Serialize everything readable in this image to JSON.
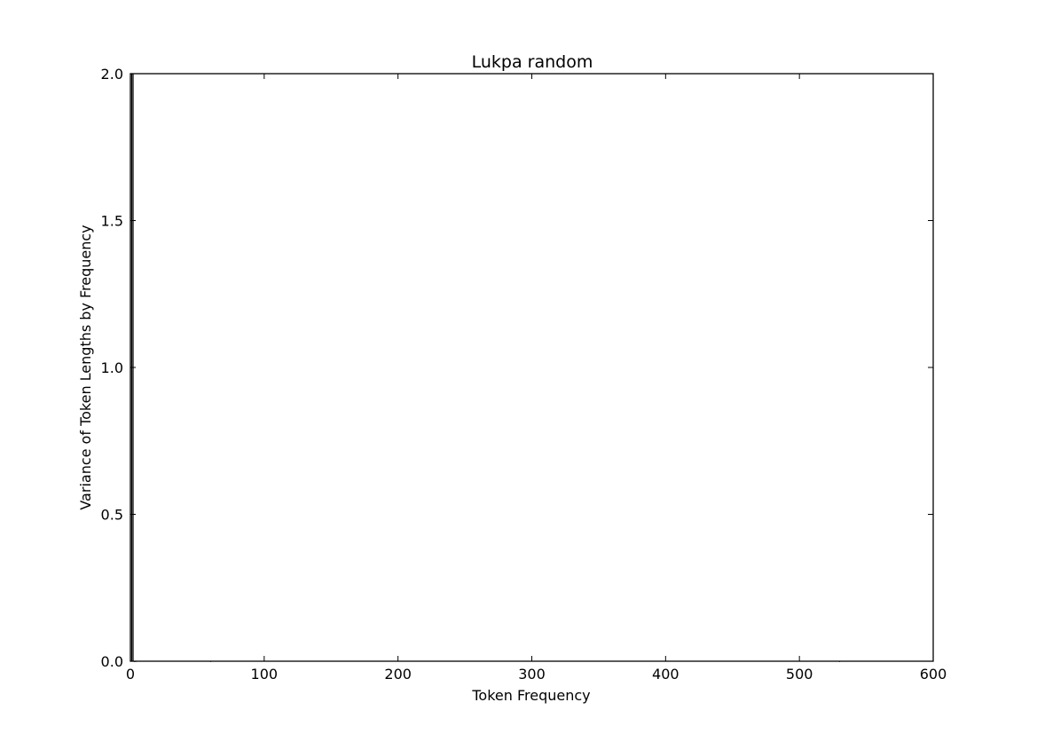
{
  "chart_data": {
    "type": "bar",
    "title": "Lukpa random",
    "xlabel": "Token Frequency",
    "ylabel": "Variance of Token Lengths by Frequency",
    "xlim": [
      0,
      600
    ],
    "ylim": [
      0.0,
      2.0
    ],
    "xticks": [
      "0",
      "100",
      "200",
      "300",
      "400",
      "500",
      "600"
    ],
    "yticks": [
      "0.0",
      "0.5",
      "1.0",
      "1.5",
      "2.0"
    ],
    "grid": false,
    "legend": "none",
    "bar_color": "#000000",
    "x": [
      1,
      2,
      3,
      4,
      60,
      530
    ],
    "values": [
      2.0,
      2.0,
      0.0,
      0.0,
      0.0,
      0.0
    ]
  }
}
